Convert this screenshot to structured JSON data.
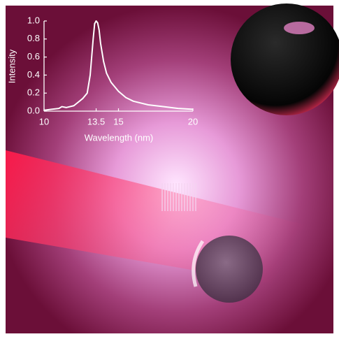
{
  "chart_data": {
    "type": "line",
    "xlabel": "Wavelength (nm)",
    "ylabel": "Intensity",
    "x": [
      10,
      10.5,
      11,
      11.2,
      11.5,
      12,
      12.3,
      12.6,
      12.9,
      13.1,
      13.3,
      13.4,
      13.5,
      13.6,
      13.7,
      13.8,
      14.0,
      14.2,
      14.5,
      15,
      15.5,
      16,
      17,
      18,
      19,
      20
    ],
    "series": [
      {
        "name": "Intensity",
        "color": "#ffffff",
        "values": [
          0.01,
          0.02,
          0.03,
          0.05,
          0.04,
          0.06,
          0.1,
          0.14,
          0.2,
          0.4,
          0.8,
          0.97,
          1.0,
          0.98,
          0.9,
          0.75,
          0.55,
          0.42,
          0.32,
          0.22,
          0.15,
          0.11,
          0.07,
          0.05,
          0.03,
          0.02
        ]
      }
    ],
    "xlim": [
      10,
      20
    ],
    "xticks": [
      10,
      13.5,
      15,
      20
    ],
    "ylim": [
      0,
      1
    ],
    "yticks": [
      {
        "value": 0,
        "label": "0.0"
      },
      0.2,
      0.4,
      0.6,
      0.8,
      {
        "value": 1,
        "label": "1.0"
      }
    ]
  }
}
